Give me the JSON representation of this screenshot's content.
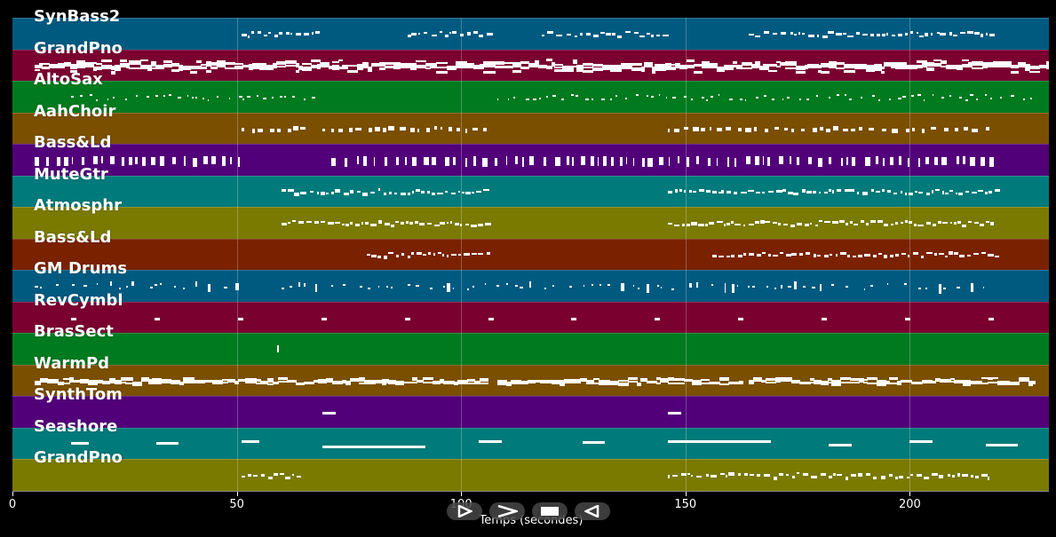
{
  "axis": {
    "xlabel": "Temps (secondes)",
    "xmin": 0,
    "xmax": 231,
    "ticks": [
      {
        "value": 0,
        "label": "0"
      },
      {
        "value": 50,
        "label": "50"
      },
      {
        "value": 100,
        "label": "100"
      },
      {
        "value": 150,
        "label": "150"
      },
      {
        "value": 200,
        "label": "200"
      }
    ]
  },
  "tracks": [
    {
      "name": "SynBass2",
      "color": "#005a80",
      "pattern": "phrases",
      "segments": [
        [
          51,
          69
        ],
        [
          88,
          106
        ],
        [
          118,
          146
        ],
        [
          164,
          218
        ]
      ],
      "density": 1.3
    },
    {
      "name": "GrandPno",
      "color": "#7a0030",
      "pattern": "dense",
      "segments": [
        [
          5,
          231
        ]
      ],
      "density": 3.0
    },
    {
      "name": "AltoSax",
      "color": "#007a1f",
      "pattern": "sparse",
      "segments": [
        [
          13,
          68
        ],
        [
          108,
          228
        ]
      ],
      "density": 1.0
    },
    {
      "name": "AahChoir",
      "color": "#7a4f00",
      "pattern": "mixed",
      "segments": [
        [
          51,
          65
        ],
        [
          69,
          106
        ],
        [
          146,
          218
        ]
      ],
      "density": 1.0
    },
    {
      "name": "Bass&Ld",
      "color": "#52007a",
      "pattern": "chunks",
      "segments": [
        [
          5,
          51
        ],
        [
          71,
          218
        ]
      ],
      "density": 0.9
    },
    {
      "name": "MuteGtr",
      "color": "#007a7a",
      "pattern": "phrases",
      "segments": [
        [
          60,
          106
        ],
        [
          146,
          219
        ]
      ],
      "density": 1.4
    },
    {
      "name": "Atmosphr",
      "color": "#7a7a00",
      "pattern": "phrases",
      "segments": [
        [
          60,
          106
        ],
        [
          146,
          219
        ]
      ],
      "density": 1.8
    },
    {
      "name": "Bass&Ld",
      "color": "#7a2200",
      "pattern": "phrases",
      "segments": [
        [
          79,
          106
        ],
        [
          156,
          219
        ]
      ],
      "density": 1.5
    },
    {
      "name": "GM Drums",
      "color": "#005a80",
      "pattern": "sparse",
      "segments": [
        [
          5,
          50
        ],
        [
          60,
          218
        ]
      ],
      "density": 0.6
    },
    {
      "name": "RevCymbl",
      "color": "#7a0030",
      "pattern": "regular",
      "segments": [
        [
          13,
          219
        ]
      ],
      "density": 0.1
    },
    {
      "name": "BrasSect",
      "color": "#007a1f",
      "pattern": "single",
      "segments": [
        [
          59,
          60
        ]
      ],
      "density": 1
    },
    {
      "name": "WarmPd",
      "color": "#7a4f00",
      "pattern": "dense",
      "segments": [
        [
          5,
          106
        ],
        [
          108,
          163
        ],
        [
          164,
          228
        ]
      ],
      "density": 2.5
    },
    {
      "name": "SynthTom",
      "color": "#52007a",
      "pattern": "pair",
      "segments": [
        [
          69,
          72
        ],
        [
          146,
          149
        ]
      ],
      "density": 1
    },
    {
      "name": "Seashore",
      "color": "#007a7a",
      "pattern": "long",
      "segments": [
        [
          13,
          17
        ],
        [
          32,
          37
        ],
        [
          51,
          55
        ],
        [
          69,
          92
        ],
        [
          104,
          109
        ],
        [
          127,
          132
        ],
        [
          146,
          169
        ],
        [
          182,
          187
        ],
        [
          200,
          205
        ],
        [
          217,
          224
        ]
      ],
      "density": 1
    },
    {
      "name": "GrandPno",
      "color": "#7a7a00",
      "pattern": "phrases",
      "segments": [
        [
          51,
          65
        ],
        [
          146,
          218
        ]
      ],
      "density": 1.2
    }
  ],
  "transport": {
    "buttons": [
      "play-icon",
      "forward-icon",
      "stop-icon",
      "rewind-icon"
    ]
  }
}
